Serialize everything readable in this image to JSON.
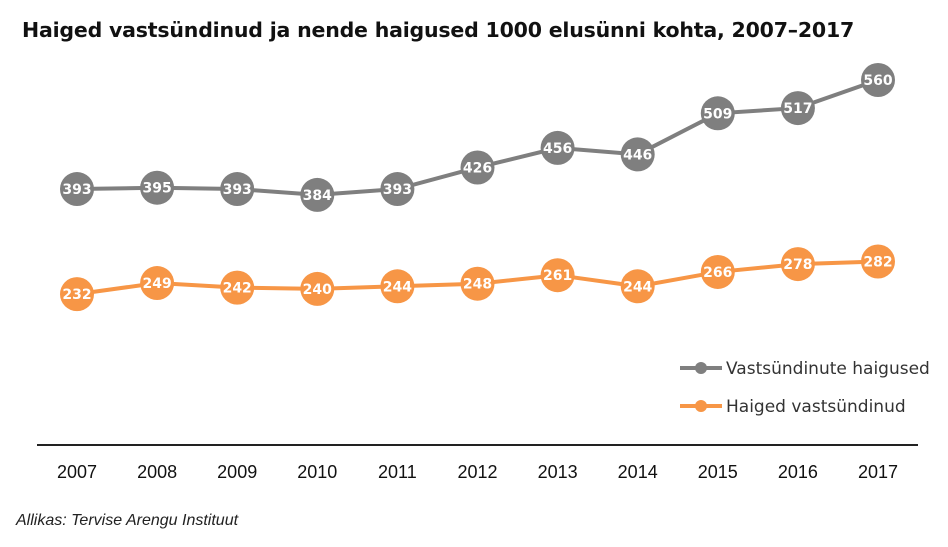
{
  "chart_data": {
    "type": "line",
    "title": "Haiged vastsündinud ja nende haigused 1000 elusünni kohta, 2007–2017",
    "categories": [
      "2007",
      "2008",
      "2009",
      "2010",
      "2011",
      "2012",
      "2013",
      "2014",
      "2015",
      "2016",
      "2017"
    ],
    "series": [
      {
        "name": "Vastsündinute haigused",
        "color": "#7f7f7f",
        "values": [
          393,
          395,
          393,
          384,
          393,
          426,
          456,
          446,
          509,
          517,
          560
        ]
      },
      {
        "name": "Haiged vastsündinud",
        "color": "#f79646",
        "values": [
          232,
          249,
          242,
          240,
          244,
          248,
          261,
          244,
          266,
          278,
          282
        ]
      }
    ],
    "ylim": [
      0,
      560
    ],
    "grid": false,
    "legend": "right",
    "data_labels": true,
    "source": "Allikas: Tervise Arengu Instituut"
  }
}
